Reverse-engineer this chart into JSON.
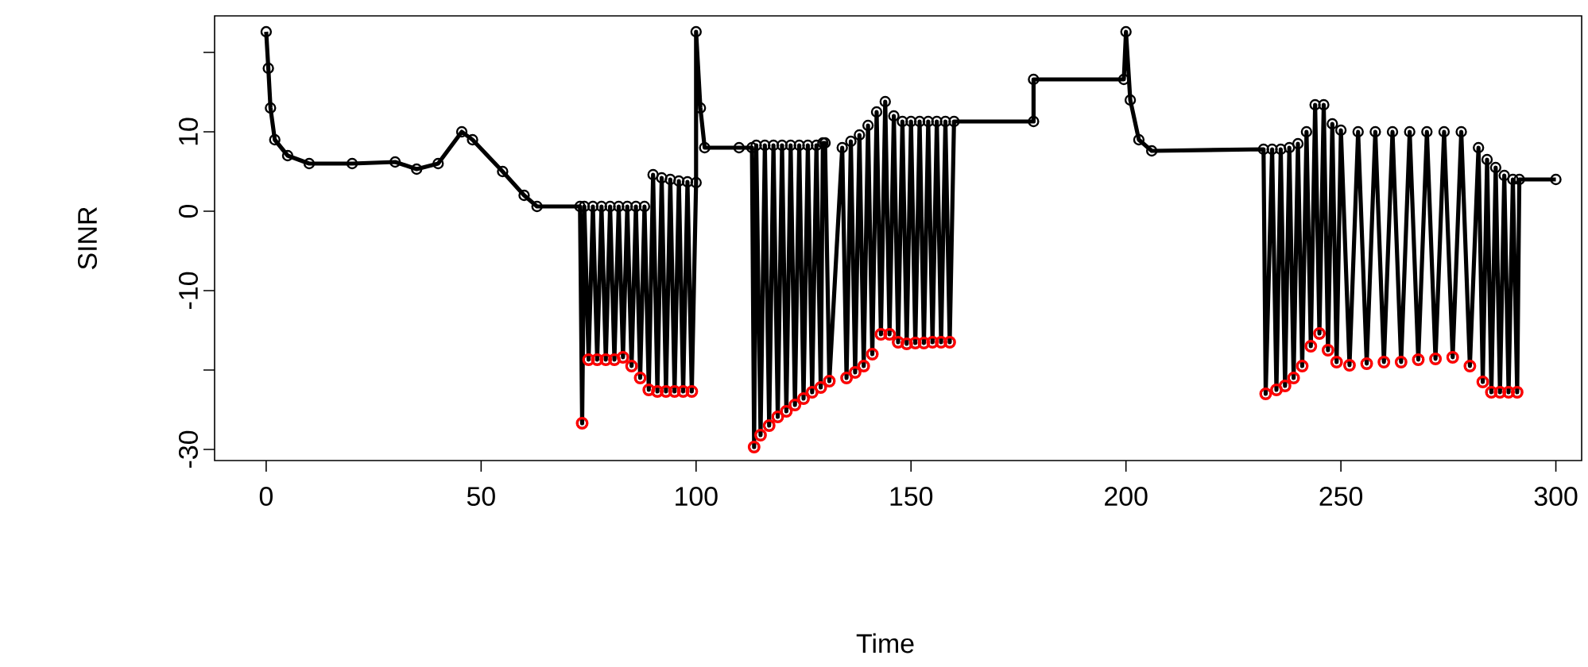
{
  "chart_data": {
    "type": "line",
    "xlabel": "Time",
    "ylabel": "SINR",
    "marker": "circle",
    "line_style": "solid",
    "xlim": [
      -12,
      306
    ],
    "ylim": [
      -31.4,
      24.6
    ],
    "xticks": [
      0,
      50,
      100,
      150,
      200,
      250,
      300
    ],
    "yticks": [
      -30,
      {
        "value": -20,
        "label": null
      },
      -10,
      0,
      10,
      {
        "value": 20,
        "label": null
      }
    ],
    "series": [
      {
        "color": "#000000",
        "x": [
          0,
          0.5,
          1,
          2,
          5,
          10,
          20,
          30,
          35,
          40,
          45.5,
          48,
          55,
          60,
          63,
          73,
          73.5,
          74,
          75,
          76,
          77,
          78,
          79,
          80,
          81,
          82,
          83,
          84,
          85,
          86,
          87,
          88,
          89,
          90,
          91,
          92,
          93,
          94,
          95,
          96,
          97,
          98,
          99,
          100,
          100,
          101,
          102,
          110,
          113,
          113.5,
          114,
          115,
          116,
          117,
          118,
          119,
          120,
          121,
          122,
          123,
          124,
          125,
          126,
          127,
          128,
          129,
          129.5,
          130,
          131,
          134,
          135,
          136,
          137,
          138,
          139,
          140,
          141,
          142,
          143,
          144,
          145,
          146,
          147,
          148,
          149,
          150,
          151,
          152,
          153,
          154,
          155,
          156,
          157,
          158,
          159,
          160,
          178.5,
          178.5,
          199.5,
          200,
          201,
          203,
          206,
          232,
          232.5,
          234,
          235,
          236,
          237,
          238,
          239,
          240,
          241,
          242,
          243,
          244,
          245,
          246,
          247,
          248,
          249,
          250,
          252,
          254,
          256,
          258,
          260,
          262,
          264,
          266,
          268,
          270,
          272,
          274,
          276,
          278,
          280,
          282,
          283,
          284,
          285,
          286,
          287,
          288,
          289,
          290,
          291,
          291.5,
          300
        ],
        "values": [
          22.6,
          18,
          13,
          9,
          7,
          6,
          6,
          6.2,
          5.3,
          6,
          10,
          9,
          5,
          2,
          0.6,
          0.6,
          -26.7,
          0.6,
          -18.7,
          0.6,
          -18.7,
          0.6,
          -18.7,
          0.6,
          -18.7,
          0.6,
          -18.4,
          0.6,
          -19.5,
          0.6,
          -21,
          0.6,
          -22.5,
          4.6,
          -22.7,
          4.2,
          -22.7,
          4,
          -22.7,
          3.8,
          -22.7,
          3.7,
          -22.7,
          3.6,
          22.6,
          13,
          8,
          8,
          8,
          -29.7,
          8.3,
          -28.2,
          8.3,
          -27,
          8.3,
          -25.9,
          8.3,
          -25.2,
          8.3,
          -24.4,
          8.3,
          -23.6,
          8.3,
          -22.8,
          8.3,
          -22.2,
          8.6,
          8.6,
          -21.4,
          8,
          -21,
          8.8,
          -20.3,
          9.6,
          -19.5,
          10.8,
          -18,
          12.5,
          -15.5,
          13.8,
          -15.5,
          12,
          -16.5,
          11.3,
          -16.7,
          11.3,
          -16.6,
          11.3,
          -16.6,
          11.3,
          -16.5,
          11.3,
          -16.5,
          11.3,
          -16.5,
          11.3,
          11.3,
          16.6,
          16.6,
          22.6,
          14,
          9,
          7.6,
          7.8,
          -23,
          7.8,
          -22.5,
          7.8,
          -22,
          8,
          -21,
          8.5,
          -19.5,
          10,
          -17,
          13.4,
          -15.4,
          13.4,
          -17.5,
          11,
          -19,
          10.2,
          -19.4,
          10,
          -19.2,
          10,
          -19,
          10,
          -19,
          10,
          -18.7,
          10,
          -18.6,
          10,
          -18.4,
          10,
          -19.5,
          8,
          -21.5,
          6.5,
          -22.8,
          5.5,
          -22.8,
          4.5,
          -22.8,
          4,
          -22.8,
          4,
          4
        ]
      },
      {
        "type": "scatter",
        "color": "#ff0000",
        "x": [
          73.5,
          75,
          77,
          79,
          81,
          83,
          85,
          87,
          89,
          91,
          93,
          95,
          97,
          99,
          113.5,
          115,
          117,
          119,
          121,
          123,
          125,
          127,
          129,
          131,
          135,
          137,
          139,
          141,
          143,
          145,
          147,
          149,
          151,
          153,
          155,
          157,
          159,
          232.5,
          235,
          237,
          239,
          241,
          243,
          245,
          247,
          249,
          252,
          256,
          260,
          264,
          268,
          272,
          276,
          280,
          283,
          285,
          287,
          289,
          291
        ],
        "values": [
          -26.7,
          -18.7,
          -18.7,
          -18.7,
          -18.7,
          -18.4,
          -19.5,
          -21,
          -22.5,
          -22.7,
          -22.7,
          -22.7,
          -22.7,
          -22.7,
          -29.7,
          -28.2,
          -27,
          -25.9,
          -25.2,
          -24.4,
          -23.6,
          -22.8,
          -22.2,
          -21.4,
          -21,
          -20.3,
          -19.5,
          -18,
          -15.5,
          -15.5,
          -16.5,
          -16.7,
          -16.6,
          -16.6,
          -16.5,
          -16.5,
          -16.5,
          -23,
          -22.5,
          -22,
          -21,
          -19.5,
          -17,
          -15.4,
          -17.5,
          -19,
          -19.4,
          -19.2,
          -19,
          -19,
          -18.7,
          -18.6,
          -18.4,
          -19.5,
          -21.5,
          -22.8,
          -22.8,
          -22.8,
          -22.8
        ]
      }
    ]
  }
}
